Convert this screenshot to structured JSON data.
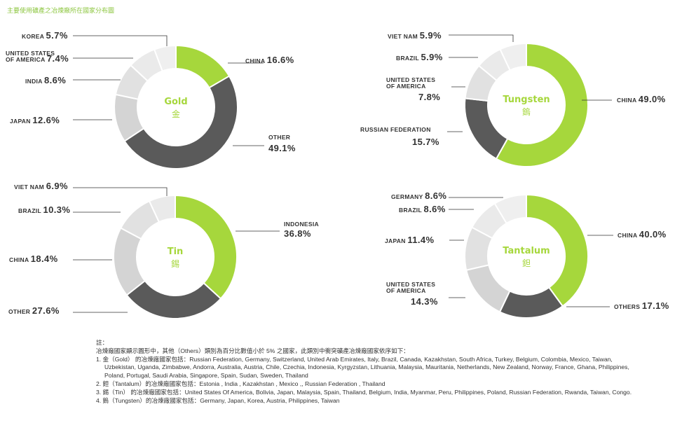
{
  "page": {
    "title": "主要使用礦產之冶煉廠所在國家分布圖",
    "green": "#a6d73c",
    "dark": "#5a5a5a",
    "grays": [
      "#d4d4d4",
      "#e1e1e1",
      "#eaeaea",
      "#efefef",
      "#f3f3f3"
    ]
  },
  "chart_data": [
    {
      "type": "pie",
      "title": "Gold",
      "title_zh": "金",
      "slices": [
        {
          "label": "CHINA",
          "value": 16.6,
          "display": "16.6%"
        },
        {
          "label": "OTHER",
          "value": 49.1,
          "display": "49.1%"
        },
        {
          "label": "JAPAN",
          "value": 12.6,
          "display": "12.6%"
        },
        {
          "label": "INDIA",
          "value": 8.6,
          "display": "8.6%"
        },
        {
          "label": "UNITED STATES OF AMERICA",
          "value": 7.4,
          "display": "7.4%"
        },
        {
          "label": "KOREA",
          "value": 5.7,
          "display": "5.7%"
        }
      ]
    },
    {
      "type": "pie",
      "title": "Tungsten",
      "title_zh": "鎢",
      "slices": [
        {
          "label": "CHINA",
          "value": 49.0,
          "display": "49.0%"
        },
        {
          "label": "RUSSIAN FEDERATION",
          "value": 15.7,
          "display": "15.7%"
        },
        {
          "label": "UNITED STATES OF AMERICA",
          "value": 7.8,
          "display": "7.8%"
        },
        {
          "label": "BRAZIL",
          "value": 5.9,
          "display": "5.9%"
        },
        {
          "label": "VIET NAM",
          "value": 5.9,
          "display": "5.9%"
        }
      ]
    },
    {
      "type": "pie",
      "title": "Tin",
      "title_zh": "錫",
      "slices": [
        {
          "label": "INDONESIA",
          "value": 36.8,
          "display": "36.8%"
        },
        {
          "label": "OTHER",
          "value": 27.6,
          "display": "27.6%"
        },
        {
          "label": "CHINA",
          "value": 18.4,
          "display": "18.4%"
        },
        {
          "label": "BRAZIL",
          "value": 10.3,
          "display": "10.3%"
        },
        {
          "label": "VIET NAM",
          "value": 6.9,
          "display": "6.9%"
        }
      ]
    },
    {
      "type": "pie",
      "title": "Tantalum",
      "title_zh": "鉭",
      "slices": [
        {
          "label": "CHINA",
          "value": 40.0,
          "display": "40.0%"
        },
        {
          "label": "OTHERS",
          "value": 17.1,
          "display": "17.1%"
        },
        {
          "label": "UNITED STATES OF AMERICA",
          "value": 14.3,
          "display": "14.3%"
        },
        {
          "label": "JAPAN",
          "value": 11.4,
          "display": "11.4%"
        },
        {
          "label": "BRAZIL",
          "value": 8.6,
          "display": "8.6%"
        },
        {
          "label": "GERMANY",
          "value": 8.6,
          "display": "8.6%"
        }
      ]
    }
  ],
  "notes": {
    "heading": "註：",
    "intro": "冶煉廠國家顯示圓形中，其他（Others）類別為百分比數值小於 5% 之國家，此類別中衝突礦產冶煉廠國家依序如下：",
    "items": [
      "1. 金（Gold） 的冶煉廠國家包括：Russian Federation, Germany, Switzerland, United Arab Emirates, Italy, Brazil, Canada, Kazakhstan, South Africa, Turkey, Belgium, Colombia, Mexico, Taiwan, Uzbekistan, Uganda, Zimbabwe, Andorra, Australia, Austria, Chile, Czechia, Indonesia, Kyrgyzstan, Lithuania, Malaysia, Mauritania, Netherlands, New Zealand, Norway, France, Ghana, Philippines, Poland, Portugal, Saudi Arabia, Singapore, Spain, Sudan, Sweden, Thailand",
      "2. 鉭（Tantalum）的冶煉廠國家包括：Estonia , India , Kazakhstan , Mexico ,, Russian Federation , Thailand",
      "3. 錫（Tin） 的冶煉廠國家包括：United States Of America, Bolivia, Japan, Malaysia, Spain, Thailand, Belgium, India, Myanmar, Peru, Philippines, Poland, Russian Federation, Rwanda, Taiwan, Congo.",
      "4. 鎢（Tungsten）的冶煉廠國家包括：Germany, Japan, Korea, Austria, Philippines, Taiwan"
    ]
  }
}
